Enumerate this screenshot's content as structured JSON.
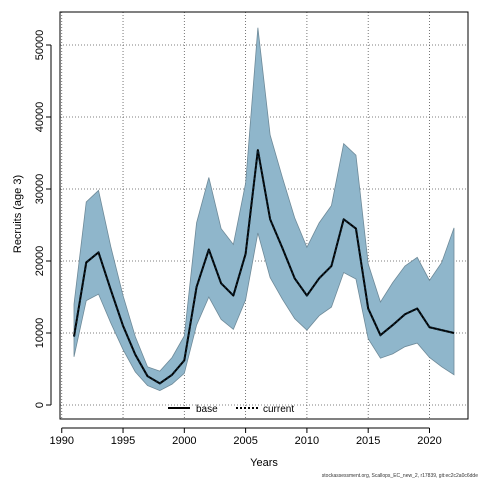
{
  "chart_data": {
    "type": "line",
    "xlabel": "Years",
    "ylabel": "Recruits (age 3)",
    "xlim": [
      1991,
      2022
    ],
    "ylim": [
      0,
      50000
    ],
    "x_ticks": [
      1990,
      1995,
      2000,
      2005,
      2010,
      2015,
      2020
    ],
    "y_ticks": [
      0,
      10000,
      20000,
      30000,
      40000,
      50000
    ],
    "grid": true,
    "grid_style": "dotted",
    "legend_position": "bottom-center",
    "legend": [
      {
        "label": "base",
        "style": "solid",
        "color": "#000000"
      },
      {
        "label": "current",
        "style": "dotted",
        "color": "#000000"
      }
    ],
    "band_color": "#8fb6cb",
    "band_outline": "#6e8a99",
    "x": [
      1991,
      1992,
      1993,
      1994,
      1995,
      1996,
      1997,
      1998,
      1999,
      2000,
      2001,
      2002,
      2003,
      2004,
      2005,
      2006,
      2007,
      2008,
      2009,
      2010,
      2011,
      2012,
      2013,
      2014,
      2015,
      2016,
      2017,
      2018,
      2019,
      2020,
      2021,
      2022
    ],
    "series": [
      {
        "name": "base",
        "values": [
          9500,
          19800,
          21200,
          16000,
          11000,
          7000,
          4000,
          3000,
          4200,
          6200,
          16400,
          21600,
          16900,
          15200,
          21000,
          35400,
          25800,
          21800,
          17600,
          15200,
          17600,
          19300,
          25800,
          24500,
          13400,
          9700,
          11100,
          12600,
          13400,
          10800,
          10400,
          10000
        ]
      },
      {
        "name": "current",
        "values": [
          9500,
          19800,
          21200,
          16000,
          11000,
          7000,
          4000,
          3000,
          4200,
          6200,
          16400,
          21600,
          16900,
          15200,
          21000,
          35400,
          25800,
          21800,
          17600,
          15200,
          17600,
          19300,
          25800,
          24500,
          13400,
          9700,
          11100,
          12600,
          13400,
          10800,
          10400,
          10000
        ]
      }
    ],
    "band_upper": [
      14000,
      28200,
      29800,
      22000,
      15200,
      9500,
      5300,
      4700,
      6600,
      9600,
      25300,
      31600,
      24500,
      22300,
      30800,
      52400,
      37500,
      31600,
      26000,
      21900,
      25300,
      27700,
      36300,
      34700,
      19600,
      14300,
      17000,
      19300,
      20500,
      17300,
      19800,
      24600
    ],
    "band_lower": [
      6700,
      14500,
      15400,
      11400,
      7700,
      4600,
      2700,
      2000,
      2900,
      4400,
      11100,
      15000,
      11900,
      10500,
      14600,
      23900,
      17700,
      14700,
      12000,
      10400,
      12400,
      13600,
      18400,
      17500,
      9200,
      6500,
      7100,
      8100,
      8600,
      6600,
      5300,
      4200
    ]
  },
  "footer": "stockassessment.org, Scallops_EC_new_2, r17839, git:ec2c2a0c6dde"
}
